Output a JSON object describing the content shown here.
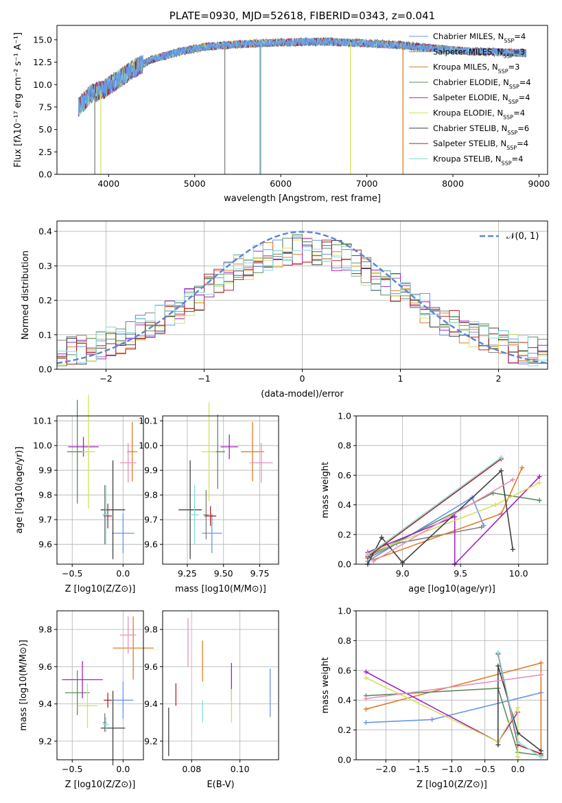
{
  "chart_data": [
    {
      "type": "line",
      "title": "PLATE=0930, MJD=52618, FIBERID=0343, z=0.041",
      "xlabel": "wavelength [Angstrom, rest frame]",
      "ylabel": "Flux [fλ10⁻¹⁷ erg cm⁻² s⁻¹ A⁻¹]",
      "xlim": [
        3400,
        9100
      ],
      "ylim": [
        0,
        16.6
      ],
      "xticks": [
        "4000",
        "5000",
        "6000",
        "7000",
        "8000",
        "9000"
      ],
      "yticks": [
        "0.0",
        "2.5",
        "5.0",
        "7.5",
        "10.0",
        "12.5",
        "15.0"
      ],
      "legend_position": "upper right",
      "series": [
        {
          "name": "Chabrier MILES, N_SSP=4",
          "color": "#6495ed"
        },
        {
          "name": "Salpeter MILES, N_SSP=3",
          "color": "#808080"
        },
        {
          "name": "Kroupa MILES, N_SSP=3",
          "color": "#e07b24"
        },
        {
          "name": "Chabrier ELODIE, N_SSP=4",
          "color": "#5b8c5a"
        },
        {
          "name": "Salpeter ELODIE, N_SSP=4",
          "color": "#a020c0"
        },
        {
          "name": "Kroupa ELODIE, N_SSP=4",
          "color": "#d4e157"
        },
        {
          "name": "Chabrier STELIB, N_SSP=6",
          "color": "#404040"
        },
        {
          "name": "Salpeter STELIB, N_SSP=4",
          "color": "#b22222"
        },
        {
          "name": "Kroupa STELIB, N_SSP=4",
          "color": "#7fdcdc"
        }
      ],
      "continuum": {
        "x": [
          3650,
          3800,
          3950,
          4100,
          4300,
          4500,
          4800,
          5100,
          5500,
          6000,
          6500,
          7000,
          7400,
          7800,
          8200,
          8600,
          8850
        ],
        "y": [
          7.5,
          9.0,
          9.5,
          10.5,
          11.8,
          12.8,
          13.6,
          14.2,
          14.5,
          14.7,
          14.8,
          14.6,
          14.4,
          14.0,
          13.7,
          13.6,
          13.5
        ]
      }
    },
    {
      "type": "bar",
      "xlabel": "(data-model)/error",
      "ylabel": "Normed distribution",
      "xlim": [
        -2.5,
        2.5
      ],
      "ylim": [
        0,
        0.43
      ],
      "xticks": [
        "−2",
        "−1",
        "0",
        "1",
        "2"
      ],
      "yticks": [
        "0.0",
        "0.1",
        "0.2",
        "0.3",
        "0.4"
      ],
      "reference_curve": {
        "name": "N(0,1)",
        "label": "𝒩(0, 1)",
        "color": "#5b86d6"
      },
      "histogram_bins": 50,
      "histogram_note": "step histograms for each of the 9 fits approximately following N(0,1)"
    },
    {
      "type": "scatter",
      "xlabel": "Z [log10(Z/Z⊙)]",
      "ylabel": "age  [log10(age/yr)]",
      "xlim": [
        -0.65,
        0.2
      ],
      "ylim": [
        9.52,
        10.12
      ],
      "xticks": [
        "−0.5",
        "0.0"
      ],
      "yticks": [
        "9.6",
        "9.7",
        "9.8",
        "9.9",
        "10.0",
        "10.1"
      ],
      "points": [
        {
          "series": "Chabrier MILES",
          "x": 0.0,
          "y": 9.645,
          "xerr": 0.11,
          "yerr": 0.08
        },
        {
          "series": "Salpeter MILES",
          "x": -0.18,
          "y": 9.72,
          "xerr": 0.02,
          "yerr": 0.12
        },
        {
          "series": "Kroupa MILES",
          "x": 0.09,
          "y": 9.975,
          "xerr": 0.05,
          "yerr": 0.12
        },
        {
          "series": "Chabrier ELODIE",
          "x": -0.45,
          "y": 9.975,
          "xerr": 0.1,
          "yerr": 0.21
        },
        {
          "series": "Salpeter ELODIE",
          "x": -0.39,
          "y": 9.995,
          "xerr": 0.15,
          "yerr": 0.04
        },
        {
          "series": "Kroupa ELODIE",
          "x": -0.34,
          "y": 9.975,
          "xerr": 0.06,
          "yerr": 0.23
        },
        {
          "series": "Chabrier STELIB",
          "x": -0.1,
          "y": 9.74,
          "xerr": 0.12,
          "yerr": 0.2
        },
        {
          "series": "Salpeter STELIB",
          "x": -0.15,
          "y": 9.715,
          "xerr": 0.04,
          "yerr": 0.05
        },
        {
          "series": "Kroupa STELIB",
          "x": -0.17,
          "y": 9.72,
          "xerr": 0.03,
          "yerr": 0.12
        },
        {
          "series": "extra (pink)",
          "x": 0.05,
          "y": 9.93,
          "xerr": 0.08,
          "yerr": 0.08
        }
      ]
    },
    {
      "type": "scatter",
      "xlabel": "mass [log10(M/M⊙)]",
      "ylim": [
        9.52,
        10.12
      ],
      "xlim": [
        9.08,
        9.88
      ],
      "xticks": [
        "9.25",
        "9.50",
        "9.75"
      ],
      "yticks": [
        "9.6",
        "9.7",
        "9.8",
        "9.9",
        "10.0",
        "10.1"
      ],
      "points": [
        {
          "series": "Chabrier MILES",
          "x": 9.42,
          "y": 9.645,
          "xerr": 0.07,
          "yerr": 0.08
        },
        {
          "series": "Salpeter MILES",
          "x": 9.38,
          "y": 9.72,
          "xerr": 0.02,
          "yerr": 0.1
        },
        {
          "series": "Kroupa MILES",
          "x": 9.7,
          "y": 9.975,
          "xerr": 0.08,
          "yerr": 0.12
        },
        {
          "series": "Chabrier ELODIE",
          "x": 9.46,
          "y": 9.975,
          "xerr": 0.05,
          "yerr": 0.15
        },
        {
          "series": "Salpeter ELODIE",
          "x": 9.54,
          "y": 9.995,
          "xerr": 0.06,
          "yerr": 0.05
        },
        {
          "series": "Kroupa ELODIE",
          "x": 9.4,
          "y": 9.975,
          "xerr": 0.05,
          "yerr": 0.2
        },
        {
          "series": "Chabrier STELIB",
          "x": 9.27,
          "y": 9.74,
          "xerr": 0.08,
          "yerr": 0.2
        },
        {
          "series": "Salpeter STELIB",
          "x": 9.41,
          "y": 9.715,
          "xerr": 0.04,
          "yerr": 0.04
        },
        {
          "series": "Kroupa STELIB",
          "x": 9.3,
          "y": 9.72,
          "xerr": 0.03,
          "yerr": 0.12
        },
        {
          "series": "extra (pink)",
          "x": 9.76,
          "y": 9.93,
          "xerr": 0.08,
          "yerr": 0.08
        }
      ]
    },
    {
      "type": "line",
      "xlabel": "age  [log10(age/yr)]",
      "ylabel": "mass weight",
      "xlim": [
        8.6,
        10.25
      ],
      "ylim": [
        0,
        1
      ],
      "xticks": [
        "9.0",
        "9.5",
        "10.0"
      ],
      "yticks": [
        "0.0",
        "0.2",
        "0.4",
        "0.6",
        "0.8",
        "1.0"
      ],
      "series": [
        {
          "name": "Chabrier MILES",
          "x": [
            8.7,
            9.6,
            9.7
          ],
          "y": [
            0.02,
            0.45,
            0.26
          ]
        },
        {
          "name": "Salpeter MILES",
          "x": [
            8.7,
            8.95,
            9.68
          ],
          "y": [
            0.04,
            0.14,
            0.25
          ]
        },
        {
          "name": "Kroupa MILES",
          "x": [
            8.75,
            9.85,
            10.03
          ],
          "y": [
            0.03,
            0.34,
            0.65
          ]
        },
        {
          "name": "Chabrier ELODIE",
          "x": [
            8.72,
            9.78,
            10.18
          ],
          "y": [
            0.06,
            0.48,
            0.43
          ]
        },
        {
          "name": "Salpeter ELODIE",
          "x": [
            8.7,
            9.45,
            9.45,
            9.45,
            10.18
          ],
          "y": [
            0.08,
            0.32,
            0.0,
            0.0,
            0.59
          ]
        },
        {
          "name": "Kroupa ELODIE",
          "x": [
            8.7,
            9.8,
            10.18
          ],
          "y": [
            0.07,
            0.4,
            0.55
          ]
        },
        {
          "name": "Chabrier STELIB",
          "x": [
            8.7,
            8.82,
            9.0,
            9.85,
            9.95
          ],
          "y": [
            0.0,
            0.18,
            0.01,
            0.63,
            0.1
          ]
        },
        {
          "name": "Salpeter STELIB",
          "x": [
            8.7,
            9.85
          ],
          "y": [
            0.05,
            0.71
          ]
        },
        {
          "name": "Kroupa STELIB",
          "x": [
            8.7,
            9.85
          ],
          "y": [
            0.06,
            0.72
          ]
        },
        {
          "name": "extra (pink)",
          "x": [
            8.75,
            9.95
          ],
          "y": [
            0.02,
            0.57
          ]
        }
      ]
    },
    {
      "type": "scatter",
      "xlabel": "Z [log10(Z/Z⊙)]",
      "ylabel": "mass [log10(M/M⊙)]",
      "xlim": [
        -0.65,
        0.2
      ],
      "ylim": [
        9.1,
        9.9
      ],
      "xticks": [
        "−0.5",
        "0.0"
      ],
      "yticks": [
        "9.2",
        "9.4",
        "9.6",
        "9.8"
      ],
      "points": [
        {
          "series": "Chabrier MILES",
          "x": 0.0,
          "y": 9.42,
          "xerr": 0.1,
          "yerr": 0.1
        },
        {
          "series": "Salpeter MILES",
          "x": -0.18,
          "y": 9.3,
          "xerr": 0.02,
          "yerr": 0.05
        },
        {
          "series": "Kroupa MILES",
          "x": 0.1,
          "y": 9.7,
          "xerr": 0.2,
          "yerr": 0.17
        },
        {
          "series": "Chabrier ELODIE",
          "x": -0.45,
          "y": 9.46,
          "xerr": 0.12,
          "yerr": 0.12
        },
        {
          "series": "Salpeter ELODIE",
          "x": -0.4,
          "y": 9.53,
          "xerr": 0.2,
          "yerr": 0.1
        },
        {
          "series": "Kroupa ELODIE",
          "x": -0.35,
          "y": 9.39,
          "xerr": 0.1,
          "yerr": 0.12
        },
        {
          "series": "Chabrier STELIB",
          "x": -0.1,
          "y": 9.27,
          "xerr": 0.12,
          "yerr": 0.2
        },
        {
          "series": "Salpeter STELIB",
          "x": -0.15,
          "y": 9.42,
          "xerr": 0.04,
          "yerr": 0.04
        },
        {
          "series": "Kroupa STELIB",
          "x": -0.17,
          "y": 9.29,
          "xerr": 0.03,
          "yerr": 0.04
        },
        {
          "series": "extra (pink)",
          "x": 0.05,
          "y": 9.77,
          "xerr": 0.08,
          "yerr": 0.1
        }
      ]
    },
    {
      "type": "scatter",
      "xlabel": "E(B-V)",
      "xlim": [
        0.068,
        0.116
      ],
      "ylim": [
        9.1,
        9.9
      ],
      "xticks": [
        "0.08",
        "0.10"
      ],
      "yticks": [
        "9.2",
        "9.4",
        "9.6",
        "9.8"
      ],
      "points": [
        {
          "series": "Chabrier MILES",
          "x": 0.1125,
          "y": 9.46,
          "yerr": 0.13
        },
        {
          "series": "Kroupa MILES",
          "x": 0.0845,
          "y": 9.63,
          "yerr": 0.11
        },
        {
          "series": "Salpeter ELODIE",
          "x": 0.0965,
          "y": 9.52,
          "yerr": 0.1
        },
        {
          "series": "Kroupa ELODIE",
          "x": 0.0965,
          "y": 9.39,
          "yerr": 0.09
        },
        {
          "series": "Chabrier STELIB",
          "x": 0.0705,
          "y": 9.25,
          "yerr": 0.13
        },
        {
          "series": "Salpeter STELIB",
          "x": 0.0735,
          "y": 9.45,
          "yerr": 0.06
        },
        {
          "series": "Kroupa STELIB",
          "x": 0.0845,
          "y": 9.36,
          "yerr": 0.06
        },
        {
          "series": "extra (pink)",
          "x": 0.0785,
          "y": 9.73,
          "yerr": 0.13
        }
      ]
    },
    {
      "type": "line",
      "xlabel": "Z [log10(Z/Z⊙)]",
      "ylabel": "mass weight",
      "xlim": [
        -2.45,
        0.45
      ],
      "ylim": [
        0,
        1
      ],
      "xticks": [
        "−2.0",
        "−1.5",
        "−1.0",
        "−0.5",
        "0.0"
      ],
      "yticks": [
        "0.0",
        "0.2",
        "0.4",
        "0.6",
        "0.8",
        "1.0"
      ],
      "series": [
        {
          "name": "Chabrier MILES",
          "x": [
            -2.3,
            -1.3,
            0.35
          ],
          "y": [
            0.25,
            0.27,
            0.45
          ]
        },
        {
          "name": "Kroupa MILES",
          "x": [
            -2.3,
            0.35,
            0.35
          ],
          "y": [
            0.34,
            0.65,
            0.03
          ]
        },
        {
          "name": "Chabrier ELODIE",
          "x": [
            -2.3,
            -0.3,
            0.0,
            0.35
          ],
          "y": [
            0.43,
            0.48,
            0.05,
            0.03
          ]
        },
        {
          "name": "Salpeter ELODIE",
          "x": [
            -2.3,
            -0.3,
            0.0,
            0.0
          ],
          "y": [
            0.59,
            0.12,
            0.32,
            0.02
          ]
        },
        {
          "name": "Kroupa ELODIE",
          "x": [
            -2.3,
            -0.3,
            0.0,
            0.0
          ],
          "y": [
            0.55,
            0.12,
            0.35,
            0.02
          ]
        },
        {
          "name": "Chabrier STELIB",
          "x": [
            -0.3,
            -0.3,
            0.0,
            0.35
          ],
          "y": [
            0.1,
            0.63,
            0.18,
            0.06
          ]
        },
        {
          "name": "Salpeter STELIB",
          "x": [
            -0.3,
            0.0,
            0.35
          ],
          "y": [
            0.71,
            0.1,
            0.04
          ]
        },
        {
          "name": "Kroupa STELIB",
          "x": [
            -0.3,
            0.0,
            0.35
          ],
          "y": [
            0.72,
            0.12,
            0.02
          ]
        },
        {
          "name": "extra (pink)",
          "x": [
            -2.3,
            0.35
          ],
          "y": [
            0.41,
            0.57
          ]
        }
      ]
    }
  ]
}
